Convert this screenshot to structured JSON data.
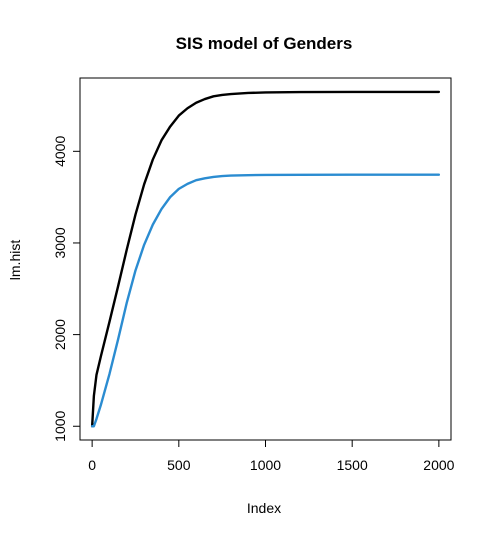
{
  "chart_data": {
    "type": "line",
    "title": "SIS model of Genders",
    "xlabel": "Index",
    "ylabel": "lm.hist",
    "xlim": [
      -70,
      2070
    ],
    "ylim": [
      850,
      4800
    ],
    "x_ticks": [
      0,
      500,
      1000,
      1500,
      2000
    ],
    "y_ticks": [
      1000,
      2000,
      3000,
      4000
    ],
    "grid": false,
    "series": [
      {
        "color": "#000000",
        "x": [
          0,
          10,
          25,
          50,
          100,
          150,
          200,
          250,
          300,
          350,
          400,
          450,
          500,
          550,
          600,
          650,
          700,
          750,
          800,
          900,
          1000,
          1200,
          1500,
          2000
        ],
        "y": [
          1000,
          1330,
          1560,
          1760,
          2140,
          2530,
          2930,
          3310,
          3640,
          3910,
          4120,
          4270,
          4390,
          4470,
          4530,
          4570,
          4600,
          4615,
          4625,
          4637,
          4642,
          4646,
          4648,
          4648
        ]
      },
      {
        "color": "#2b8cd1",
        "x": [
          0,
          10,
          25,
          50,
          100,
          150,
          200,
          250,
          300,
          350,
          400,
          450,
          500,
          550,
          600,
          650,
          700,
          750,
          800,
          900,
          1000,
          1200,
          1500,
          2000
        ],
        "y": [
          1000,
          1000,
          1080,
          1230,
          1570,
          1950,
          2350,
          2700,
          2980,
          3200,
          3370,
          3500,
          3590,
          3645,
          3685,
          3705,
          3720,
          3730,
          3735,
          3740,
          3742,
          3744,
          3745,
          3745
        ]
      }
    ]
  }
}
